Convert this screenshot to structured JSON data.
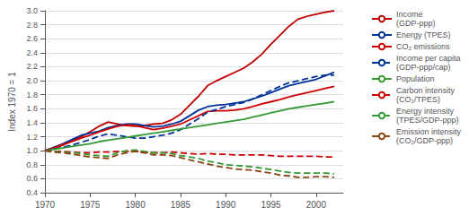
{
  "chart_data": {
    "type": "line",
    "ylabel": "Index 1970 = 1",
    "x": [
      1970,
      1971,
      1972,
      1973,
      1974,
      1975,
      1976,
      1977,
      1978,
      1979,
      1980,
      1981,
      1982,
      1983,
      1984,
      1985,
      1986,
      1987,
      1988,
      1989,
      1990,
      1991,
      1992,
      1993,
      1994,
      1995,
      1996,
      1997,
      1998,
      1999,
      2000,
      2001,
      2002
    ],
    "xlim": [
      1970,
      2003
    ],
    "xticks": [
      1970,
      1975,
      1980,
      1985,
      1990,
      1995,
      2000
    ],
    "ylim": [
      0.4,
      3.0
    ],
    "yticks": [
      0.4,
      0.6,
      0.8,
      {
        "value": 1,
        "label": "1.0"
      },
      1.2,
      1.4,
      1.6,
      1.8,
      {
        "value": 2,
        "label": "2.0"
      },
      2.2,
      2.4,
      2.6,
      2.8,
      {
        "value": 3,
        "label": "3.0"
      }
    ],
    "grid": true,
    "legend": "right",
    "series": [
      {
        "name": "Income\n(GDP-ppp)",
        "color": "#c00000",
        "line_style": "solid",
        "values": [
          1.0,
          1.04,
          1.08,
          1.14,
          1.2,
          1.27,
          1.35,
          1.41,
          1.38,
          1.36,
          1.35,
          1.36,
          1.38,
          1.39,
          1.44,
          1.52,
          1.65,
          1.78,
          1.93,
          2.0,
          2.06,
          2.12,
          2.18,
          2.27,
          2.38,
          2.52,
          2.65,
          2.78,
          2.88,
          2.92,
          2.95,
          2.98,
          3.0
        ]
      },
      {
        "name": "Energy (TPES)",
        "color": "#003399",
        "line_style": "solid",
        "values": [
          1.0,
          1.05,
          1.1,
          1.16,
          1.22,
          1.25,
          1.28,
          1.33,
          1.36,
          1.38,
          1.38,
          1.36,
          1.34,
          1.35,
          1.38,
          1.42,
          1.5,
          1.58,
          1.63,
          1.65,
          1.66,
          1.68,
          1.7,
          1.74,
          1.78,
          1.83,
          1.88,
          1.93,
          1.96,
          1.99,
          2.02,
          2.07,
          2.12
        ]
      },
      {
        "name": "CO₂ emissions",
        "color": "#cc0000",
        "line_style": "solid",
        "values": [
          1.0,
          1.04,
          1.09,
          1.13,
          1.18,
          1.22,
          1.27,
          1.31,
          1.35,
          1.37,
          1.36,
          1.33,
          1.3,
          1.32,
          1.35,
          1.38,
          1.44,
          1.5,
          1.56,
          1.57,
          1.57,
          1.58,
          1.6,
          1.63,
          1.67,
          1.7,
          1.73,
          1.77,
          1.8,
          1.83,
          1.86,
          1.89,
          1.92
        ]
      },
      {
        "name": "Income per capita\n(GDP-ppp/cap)",
        "color": "#003399",
        "line_style": "dashed",
        "values": [
          1.0,
          1.02,
          1.05,
          1.08,
          1.12,
          1.16,
          1.21,
          1.24,
          1.22,
          1.2,
          1.18,
          1.18,
          1.2,
          1.22,
          1.25,
          1.3,
          1.38,
          1.46,
          1.55,
          1.59,
          1.63,
          1.66,
          1.69,
          1.74,
          1.8,
          1.86,
          1.92,
          1.97,
          2.0,
          2.03,
          2.06,
          2.08,
          2.08
        ]
      },
      {
        "name": "Population",
        "color": "#339933",
        "line_style": "solid",
        "values": [
          1.0,
          1.02,
          1.04,
          1.06,
          1.08,
          1.1,
          1.13,
          1.15,
          1.17,
          1.19,
          1.21,
          1.23,
          1.25,
          1.27,
          1.29,
          1.31,
          1.33,
          1.35,
          1.37,
          1.39,
          1.41,
          1.43,
          1.45,
          1.48,
          1.51,
          1.54,
          1.57,
          1.6,
          1.62,
          1.64,
          1.66,
          1.68,
          1.7
        ]
      },
      {
        "name": "Carbon intensity\n(CO₂/TPES)",
        "color": "#cc0000",
        "line_style": "dashed",
        "values": [
          1.0,
          0.99,
          0.99,
          0.98,
          0.97,
          0.97,
          0.98,
          0.98,
          0.99,
          0.99,
          0.99,
          0.98,
          0.97,
          0.97,
          0.98,
          0.97,
          0.96,
          0.95,
          0.96,
          0.95,
          0.95,
          0.94,
          0.94,
          0.94,
          0.94,
          0.93,
          0.92,
          0.92,
          0.92,
          0.92,
          0.92,
          0.91,
          0.91
        ]
      },
      {
        "name": "Energy intensity\n(TPES/GDP-ppp)",
        "color": "#339933",
        "line_style": "dashed",
        "values": [
          1.0,
          0.99,
          0.98,
          0.97,
          0.96,
          0.94,
          0.93,
          0.92,
          0.97,
          1.0,
          1.01,
          0.99,
          0.97,
          0.97,
          0.96,
          0.93,
          0.91,
          0.89,
          0.85,
          0.83,
          0.8,
          0.79,
          0.78,
          0.77,
          0.75,
          0.73,
          0.71,
          0.69,
          0.68,
          0.68,
          0.68,
          0.68,
          0.67
        ]
      },
      {
        "name": "Emission intensity\n(CO₂/GDP-ppp)",
        "color": "#8B4513",
        "line_style": "dashed",
        "values": [
          1.0,
          0.98,
          0.97,
          0.95,
          0.93,
          0.91,
          0.9,
          0.89,
          0.94,
          0.97,
          0.99,
          0.97,
          0.94,
          0.94,
          0.93,
          0.9,
          0.87,
          0.84,
          0.81,
          0.78,
          0.76,
          0.74,
          0.73,
          0.72,
          0.7,
          0.68,
          0.65,
          0.64,
          0.62,
          0.62,
          0.63,
          0.63,
          0.62
        ]
      }
    ]
  }
}
